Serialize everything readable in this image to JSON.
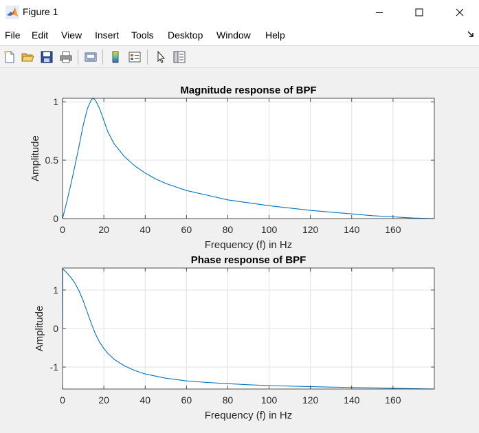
{
  "window": {
    "title": "Figure 1",
    "controls": {
      "minimize": "minimize",
      "maximize": "maximize",
      "close": "close"
    }
  },
  "menu": {
    "items": [
      "File",
      "Edit",
      "View",
      "Insert",
      "Tools",
      "Desktop",
      "Window",
      "Help"
    ]
  },
  "toolbar": {
    "buttons": [
      "new-figure-icon",
      "open-file-icon",
      "save-icon",
      "print-icon",
      "link-plot-icon",
      "colorbar-icon",
      "legend-icon",
      "pointer-icon",
      "property-editor-icon"
    ]
  },
  "colors": {
    "line": "#0072BD",
    "grid": "#e1e1e1",
    "axes_background": "#ffffff",
    "figure_background": "#f0f0f0"
  },
  "chart_data": [
    {
      "type": "line",
      "title": "Magnitude response of BPF",
      "xlabel": "Frequency (f) in Hz",
      "ylabel": "Amplitude",
      "xlim": [
        0,
        180
      ],
      "ylim": [
        0,
        1.03
      ],
      "xticks": [
        0,
        20,
        40,
        60,
        80,
        100,
        120,
        140,
        160
      ],
      "yticks": [
        0,
        0.5,
        1
      ],
      "ytick_labels": [
        "0",
        "0.5",
        "1"
      ],
      "grid": true,
      "series": [
        {
          "x": [
            0,
            2,
            4,
            6,
            8,
            10,
            12,
            14,
            15,
            16,
            18,
            20,
            22,
            25,
            30,
            35,
            40,
            45,
            50,
            60,
            70,
            80,
            90,
            100,
            110,
            120,
            130,
            140,
            150,
            160,
            170,
            180
          ],
          "y": [
            0,
            0.14,
            0.29,
            0.45,
            0.62,
            0.8,
            0.94,
            1.02,
            1.03,
            1.01,
            0.94,
            0.84,
            0.74,
            0.64,
            0.53,
            0.45,
            0.39,
            0.34,
            0.3,
            0.24,
            0.2,
            0.16,
            0.135,
            0.11,
            0.09,
            0.07,
            0.055,
            0.04,
            0.025,
            0.015,
            0.005,
            0
          ]
        }
      ]
    },
    {
      "type": "line",
      "title": "Phase response of BPF",
      "xlabel": "Frequency (f) in Hz",
      "ylabel": "Amplitude",
      "xlim": [
        0,
        180
      ],
      "ylim": [
        -1.57,
        1.57
      ],
      "xticks": [
        0,
        20,
        40,
        60,
        80,
        100,
        120,
        140,
        160
      ],
      "yticks": [
        -1,
        0,
        1
      ],
      "ytick_labels": [
        "-1",
        "0",
        "1"
      ],
      "grid": true,
      "series": [
        {
          "x": [
            0,
            0.1,
            2,
            4,
            6,
            8,
            10,
            12,
            14,
            16,
            18,
            20,
            22,
            25,
            30,
            35,
            40,
            50,
            60,
            70,
            80,
            90,
            100,
            120,
            140,
            160,
            180
          ],
          "y": [
            0,
            1.55,
            1.45,
            1.33,
            1.18,
            0.98,
            0.72,
            0.42,
            0.12,
            -0.15,
            -0.36,
            -0.52,
            -0.65,
            -0.8,
            -0.97,
            -1.09,
            -1.18,
            -1.29,
            -1.36,
            -1.4,
            -1.43,
            -1.46,
            -1.48,
            -1.51,
            -1.53,
            -1.55,
            -1.57
          ]
        }
      ]
    }
  ]
}
